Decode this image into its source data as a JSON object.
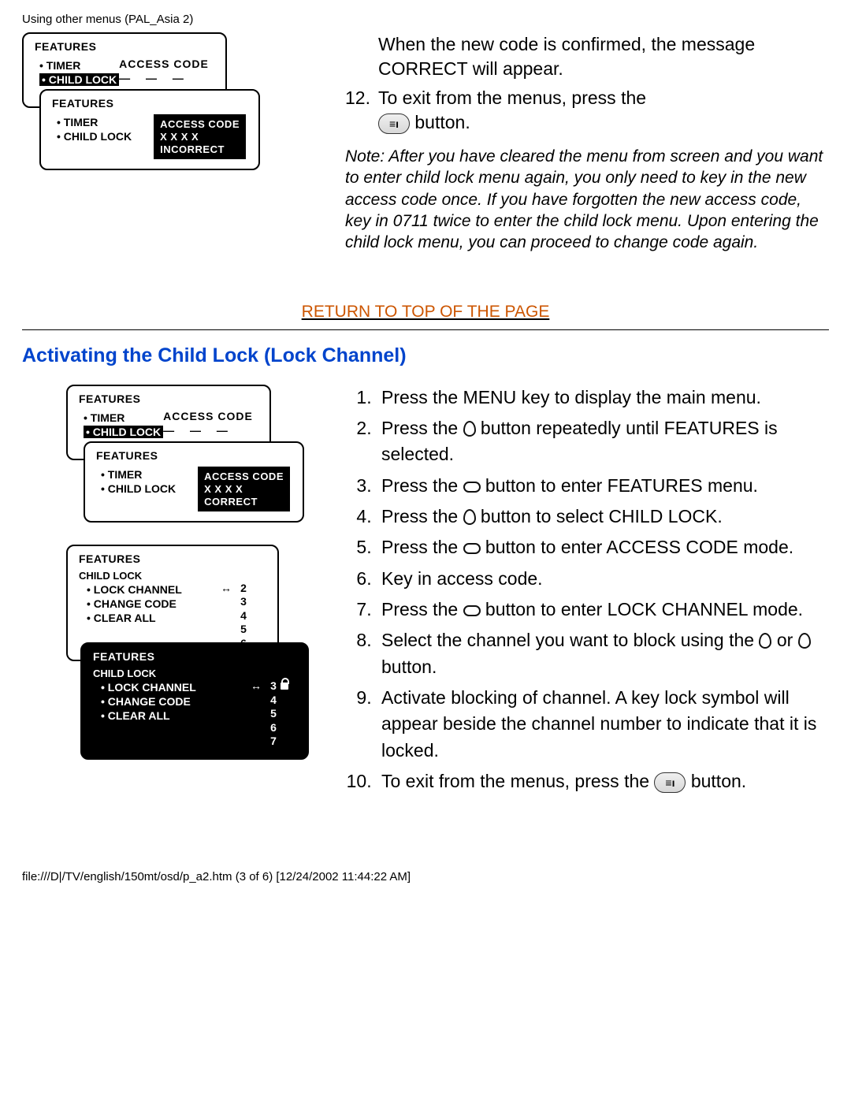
{
  "header": {
    "title": "Using other menus (PAL_Asia 2)"
  },
  "top": {
    "confirm_text": "When the new code is confirmed, the message CORRECT will appear.",
    "step12_num": "12.",
    "step12_a": "To exit from the menus, press the",
    "step12_b": " button.",
    "exit_btn_glyph": "≡ı",
    "note": "Note: After you have cleared the menu from screen and you want to enter child lock menu again, you only need to key in the new access code once. If you have forgotten the new access code, key in 0711 twice to enter the child lock menu. Upon entering the child lock menu, you can proceed to change code again."
  },
  "osd_top": {
    "box_a": {
      "title": "FEATURES",
      "items": [
        "• TIMER",
        "• CHILD LOCK"
      ],
      "selected_index": 1,
      "right_label": "ACCESS CODE",
      "right_dashes": "— — — —"
    },
    "box_b": {
      "title": "FEATURES",
      "items": [
        "• TIMER",
        "• CHILD LOCK"
      ],
      "black_lines": [
        "ACCESS CODE",
        "X X X X",
        "INCORRECT"
      ]
    }
  },
  "return_link": {
    "text": "RETURN TO TOP OF THE PAGE",
    "color": "#cc5500"
  },
  "section": {
    "title": "Activating the Child Lock (Lock Channel)",
    "color": "#0044cc"
  },
  "osd_bottom1": {
    "box_a": {
      "title": "FEATURES",
      "items": [
        "• TIMER",
        "• CHILD LOCK"
      ],
      "selected_index": 1,
      "right_label": "ACCESS CODE",
      "right_dashes": "— — — —"
    },
    "box_b": {
      "title": "FEATURES",
      "items": [
        "• TIMER",
        "• CHILD LOCK"
      ],
      "black_lines": [
        "ACCESS CODE",
        "X X X X",
        "CORRECT"
      ]
    }
  },
  "osd_bottom2": {
    "box_a": {
      "title": "FEATURES",
      "sub": "CHILD LOCK",
      "items": [
        "• LOCK CHANNEL",
        "• CHANGE CODE",
        "• CLEAR ALL"
      ],
      "channels": [
        {
          "num": "2",
          "arrow": true,
          "locked": false
        },
        {
          "num": "3",
          "arrow": false,
          "locked": false
        },
        {
          "num": "4",
          "arrow": false,
          "locked": false
        },
        {
          "num": "5",
          "arrow": false,
          "locked": false
        },
        {
          "num": "6",
          "arrow": false,
          "locked": false
        }
      ]
    },
    "box_b": {
      "title": "FEATURES",
      "sub": "CHILD LOCK",
      "items": [
        "• LOCK CHANNEL",
        "• CHANGE CODE",
        "• CLEAR ALL"
      ],
      "channels": [
        {
          "num": "3",
          "arrow": true,
          "locked": true
        },
        {
          "num": "4",
          "arrow": false,
          "locked": false
        },
        {
          "num": "5",
          "arrow": false,
          "locked": false
        },
        {
          "num": "6",
          "arrow": false,
          "locked": false
        },
        {
          "num": "7",
          "arrow": false,
          "locked": false
        }
      ]
    }
  },
  "steps": {
    "s1": "Press the MENU key to display the main menu.",
    "s2a": "Press the ",
    "s2b": " button repeatedly until FEATURES is selected.",
    "s3a": "Press the ",
    "s3b": " button to enter FEATURES menu.",
    "s4a": "Press the ",
    "s4b": " button to select CHILD LOCK.",
    "s5a": "Press the ",
    "s5b": " button to enter ACCESS CODE mode.",
    "s6": "Key in access code.",
    "s7a": "Press the ",
    "s7b": " button to enter LOCK CHANNEL mode.",
    "s8a": "Select the channel you want to block using the ",
    "s8b": " or ",
    "s8c": " button.",
    "s9": "Activate blocking of channel. A key lock symbol will appear beside the channel number to indicate that it is locked.",
    "s10a": "To exit from the menus, press the ",
    "s10b": " button."
  },
  "footer": {
    "text": "file:///D|/TV/english/150mt/osd/p_a2.htm (3 of 6) [12/24/2002 11:44:22 AM]"
  }
}
